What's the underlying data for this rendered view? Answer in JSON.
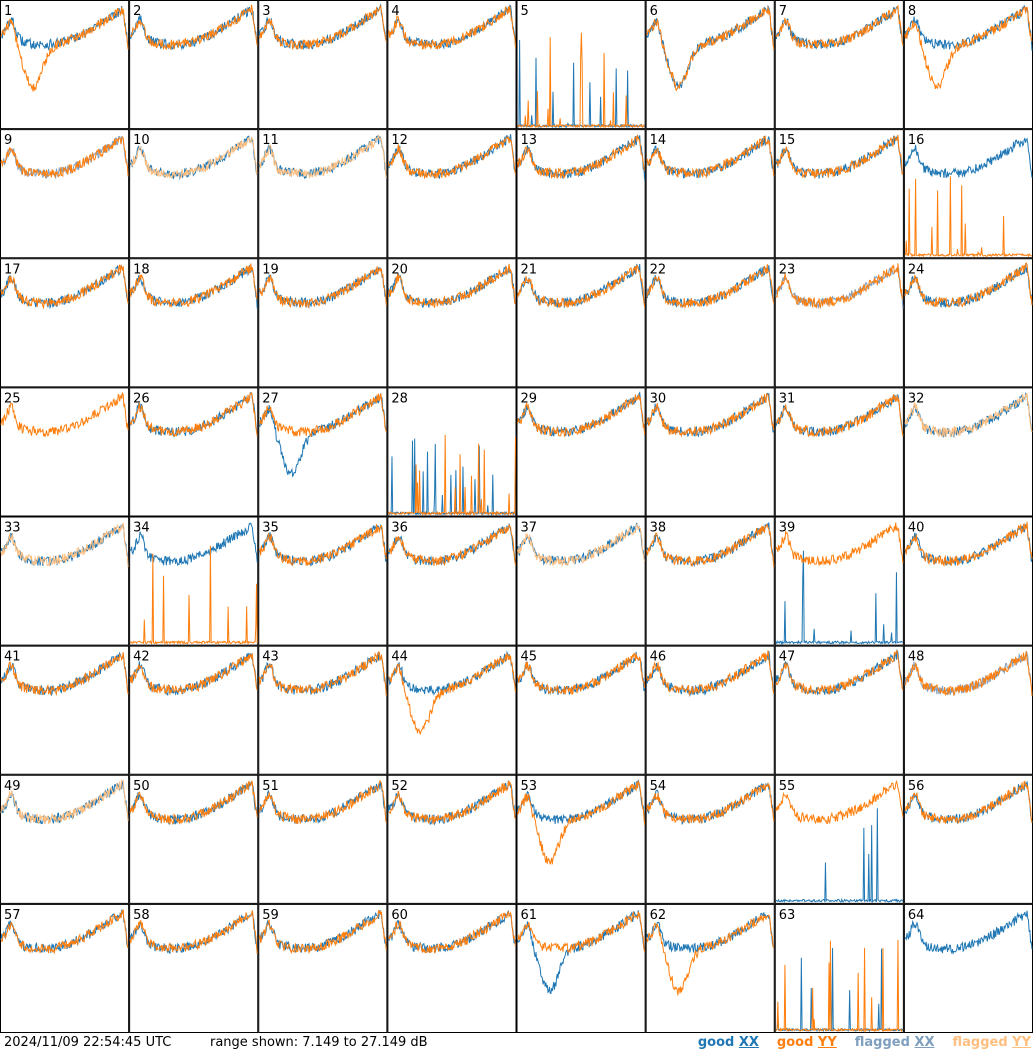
{
  "footer": {
    "timestamp": "2024/11/09 22:54:45 UTC",
    "range_text": "range shown: 7.149 to 27.149 dB"
  },
  "legend": [
    {
      "status": "good",
      "pol": "XX",
      "color": "#1f77b4"
    },
    {
      "status": "good",
      "pol": "YY",
      "color": "#ff7f0e"
    },
    {
      "status": "flagged",
      "pol": "XX",
      "color": "#7f9fbf"
    },
    {
      "status": "flagged",
      "pol": "YY",
      "color": "#ffbf80"
    }
  ],
  "chart_data": {
    "type": "line",
    "layout": "small-multiples 8x8",
    "y_range_db": [
      7.149,
      27.149
    ],
    "panel_ids": [
      1,
      2,
      3,
      4,
      5,
      6,
      7,
      8,
      9,
      10,
      11,
      12,
      13,
      14,
      15,
      16,
      17,
      18,
      19,
      20,
      21,
      22,
      23,
      24,
      25,
      26,
      27,
      28,
      29,
      30,
      31,
      32,
      33,
      34,
      35,
      36,
      37,
      38,
      39,
      40,
      41,
      42,
      43,
      44,
      45,
      46,
      47,
      48,
      49,
      50,
      51,
      52,
      53,
      54,
      55,
      56,
      57,
      58,
      59,
      60,
      61,
      62,
      63,
      64
    ],
    "series_keys": [
      "good XX",
      "good YY",
      "flagged XX",
      "flagged YY"
    ],
    "panel_status": {
      "flagged_xx": [
        9,
        23,
        48
      ],
      "flagged_yy": [
        10,
        11,
        32,
        33,
        37,
        49
      ],
      "spiky_xx": [
        5,
        28,
        39,
        55,
        63
      ],
      "spiky_yy": [
        5,
        16,
        28,
        34,
        63
      ],
      "xx_dips": [
        6,
        27,
        61
      ],
      "yy_dips": [
        1,
        6,
        8,
        44,
        53,
        62
      ],
      "yy_missing": [
        64
      ],
      "xx_missing": [
        25
      ]
    },
    "note_values": "traces are noisy bandpass spectra; per-panel values not labeled"
  }
}
